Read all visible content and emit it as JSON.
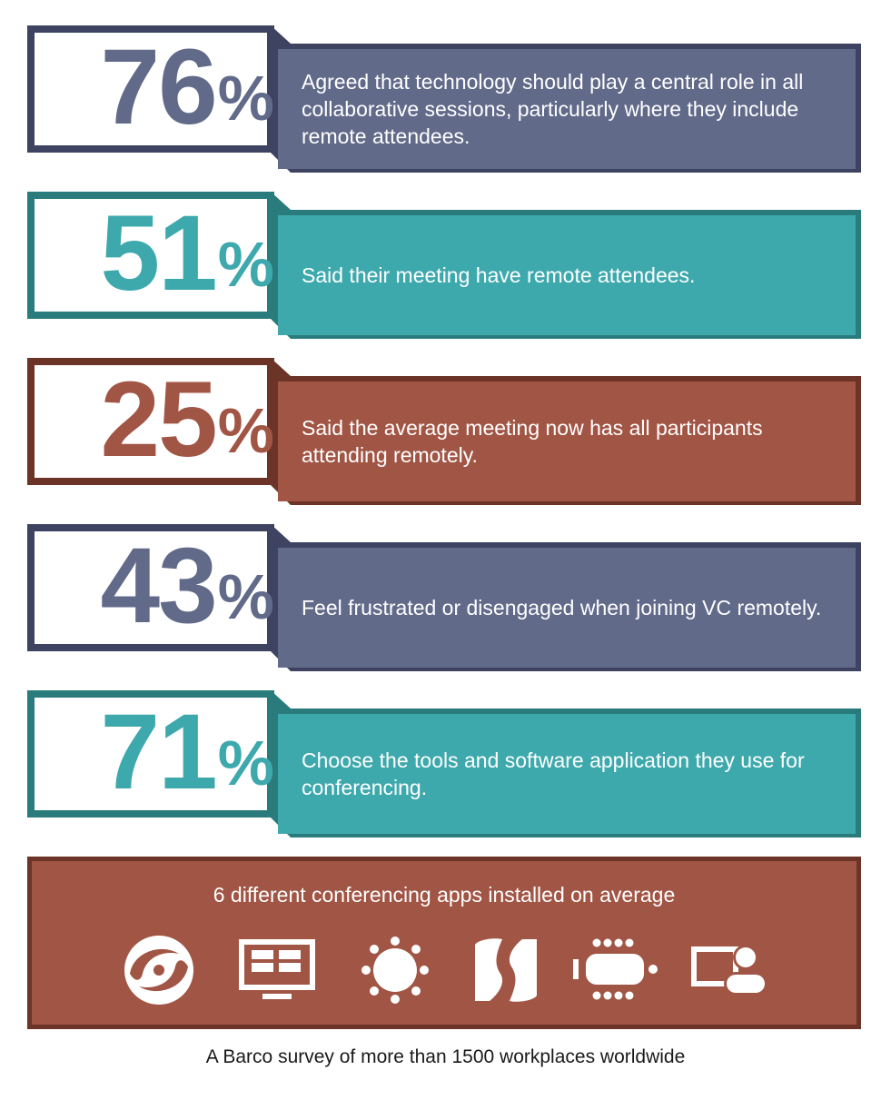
{
  "stats": [
    {
      "number": "76",
      "sign": "%",
      "text": "Agreed that technology should play a central role in all collaborative sessions, particularly where they include remote attendees."
    },
    {
      "number": "51",
      "sign": "%",
      "text": "Said their meeting have remote attendees."
    },
    {
      "number": "25",
      "sign": "%",
      "text": "Said the average meeting now has all participants attending remotely."
    },
    {
      "number": "43",
      "sign": "%",
      "text": "Feel frustrated or disengaged when joining VC remotely."
    },
    {
      "number": "71",
      "sign": "%",
      "text": "Choose the tools and software application they use for conferencing."
    }
  ],
  "apps_panel": {
    "title": "6 different conferencing apps installed on average",
    "icons": [
      "swirl-app-icon",
      "screen-grid-app-icon",
      "sun-app-icon",
      "split-s-app-icon",
      "table-meeting-app-icon",
      "screen-person-app-icon"
    ]
  },
  "footer": "A Barco survey of more than 1500 workplaces worldwide",
  "colors": {
    "slate": "#626a8a",
    "slate_dark": "#3d4360",
    "teal": "#3ea9ad",
    "teal_dark": "#2a7b7c",
    "rust": "#a15545",
    "rust_dark": "#6b3427"
  }
}
